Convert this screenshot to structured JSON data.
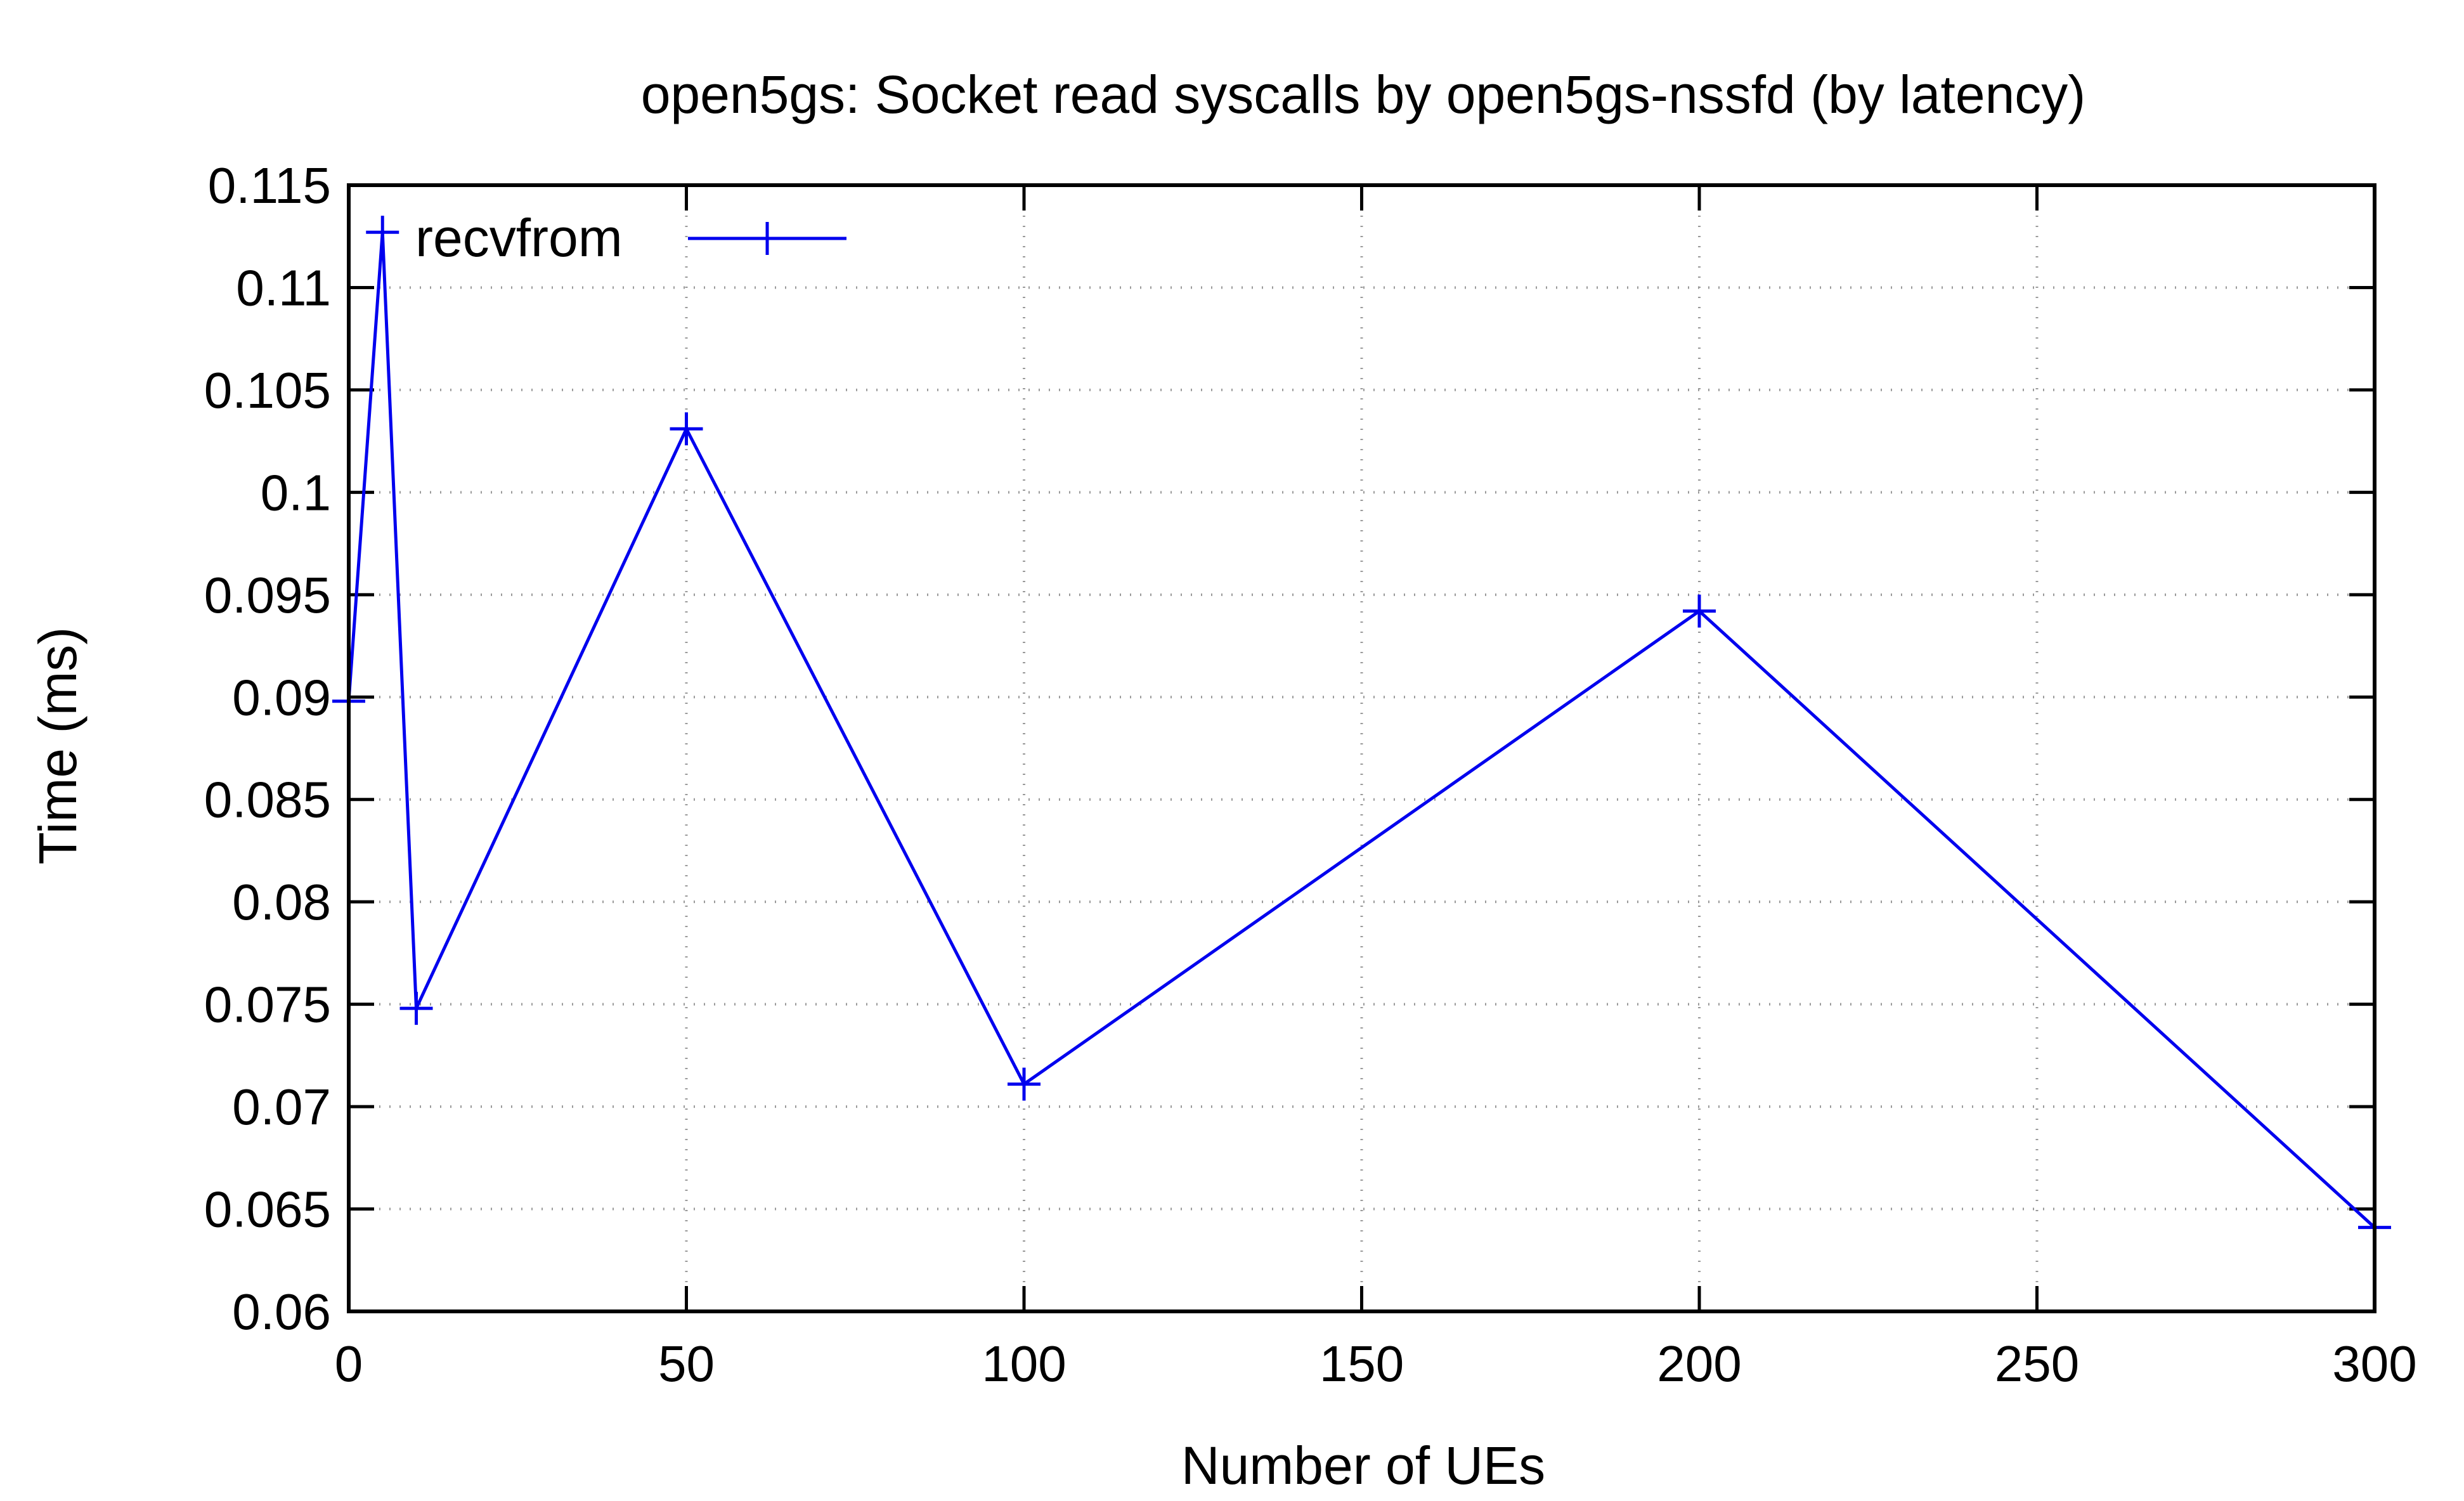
{
  "chart_data": {
    "type": "line",
    "title": "open5gs: Socket read syscalls by open5gs-nssfd (by latency)",
    "xlabel": "Number of UEs",
    "ylabel": "Time (ms)",
    "xlim": [
      0,
      300
    ],
    "ylim": [
      0.06,
      0.115
    ],
    "xticks": [
      0,
      50,
      100,
      150,
      200,
      250,
      300
    ],
    "xtick_labels": [
      "0",
      "50",
      "100",
      "150",
      "200",
      "250",
      "300"
    ],
    "yticks": [
      0.06,
      0.065,
      0.07,
      0.075,
      0.08,
      0.085,
      0.09,
      0.095,
      0.1,
      0.105,
      0.11,
      0.115
    ],
    "ytick_labels": [
      "0.06",
      "0.065",
      "0.07",
      "0.075",
      "0.08",
      "0.085",
      "0.09",
      "0.095",
      "0.1",
      "0.105",
      "0.11",
      "0.115"
    ],
    "grid": true,
    "legend_position": "top-left",
    "series": [
      {
        "name": "recvfrom",
        "color": "#0000ee",
        "marker": "plus",
        "x": [
          0,
          5,
          10,
          50,
          100,
          200,
          300
        ],
        "y": [
          0.0898,
          0.1127,
          0.0748,
          0.1031,
          0.0711,
          0.0942,
          0.0641
        ]
      }
    ]
  }
}
